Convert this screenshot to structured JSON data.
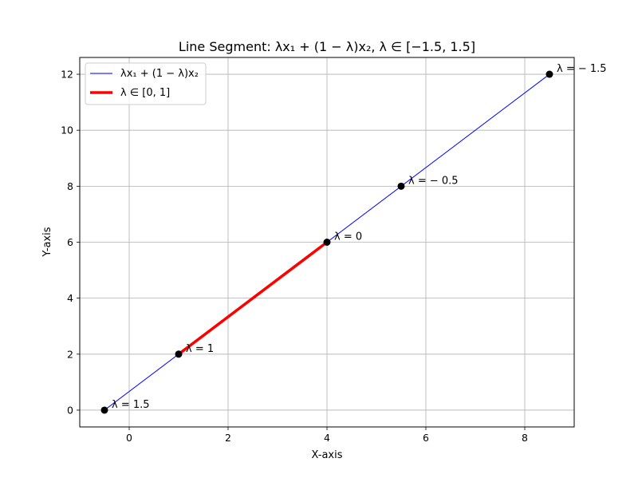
{
  "chart_data": {
    "type": "line",
    "title": "Line Segment: λx₁ + (1 − λ)x₂, λ ∈ [−1.5, 1.5]",
    "xlabel": "X-axis",
    "ylabel": "Y-axis",
    "xlim": [
      -1.0,
      9.0
    ],
    "ylim": [
      -0.6,
      12.6
    ],
    "xticks": [
      0,
      2,
      4,
      6,
      8
    ],
    "yticks": [
      0,
      2,
      4,
      6,
      8,
      10,
      12
    ],
    "grid": true,
    "legend_position": "top-left",
    "series": [
      {
        "name": "λx₁ + (1 − λ)x₂",
        "color": "#0000ff",
        "x": [
          -0.5,
          8.5
        ],
        "y": [
          0,
          12
        ]
      },
      {
        "name": "λ ∈ [0, 1]",
        "color": "#ff0000",
        "x": [
          1,
          4
        ],
        "y": [
          2,
          6
        ]
      }
    ],
    "points": [
      {
        "x": 8.5,
        "y": 12,
        "label": "λ = − 1.5"
      },
      {
        "x": 5.5,
        "y": 8,
        "label": "λ = − 0.5"
      },
      {
        "x": 4,
        "y": 6,
        "label": "λ = 0"
      },
      {
        "x": 1,
        "y": 2,
        "label": "λ = 1"
      },
      {
        "x": -0.5,
        "y": 0,
        "label": "λ = 1.5"
      }
    ]
  }
}
